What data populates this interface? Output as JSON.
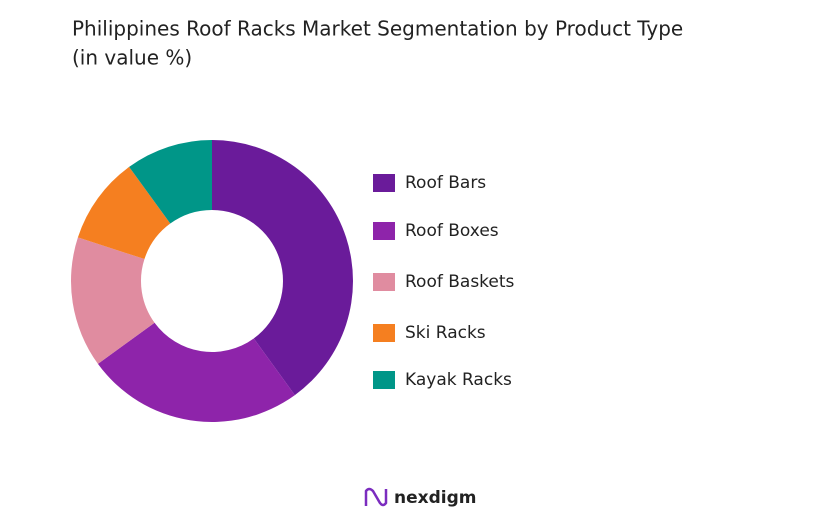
{
  "chart_data": {
    "type": "donut",
    "title": "Philippines Roof Racks Market Segmentation by Product Type",
    "subtitle": "(in value %)",
    "categories": [
      "Roof Bars",
      "Roof Boxes",
      "Roof Baskets",
      "Ski Racks",
      "Kayak Racks"
    ],
    "values": [
      40,
      25,
      15,
      10,
      10
    ],
    "colors": [
      "#6a1b9a",
      "#8e24aa",
      "#e08ca0",
      "#f57f20",
      "#009688"
    ],
    "legend": "right"
  },
  "brand": "nexdigm"
}
